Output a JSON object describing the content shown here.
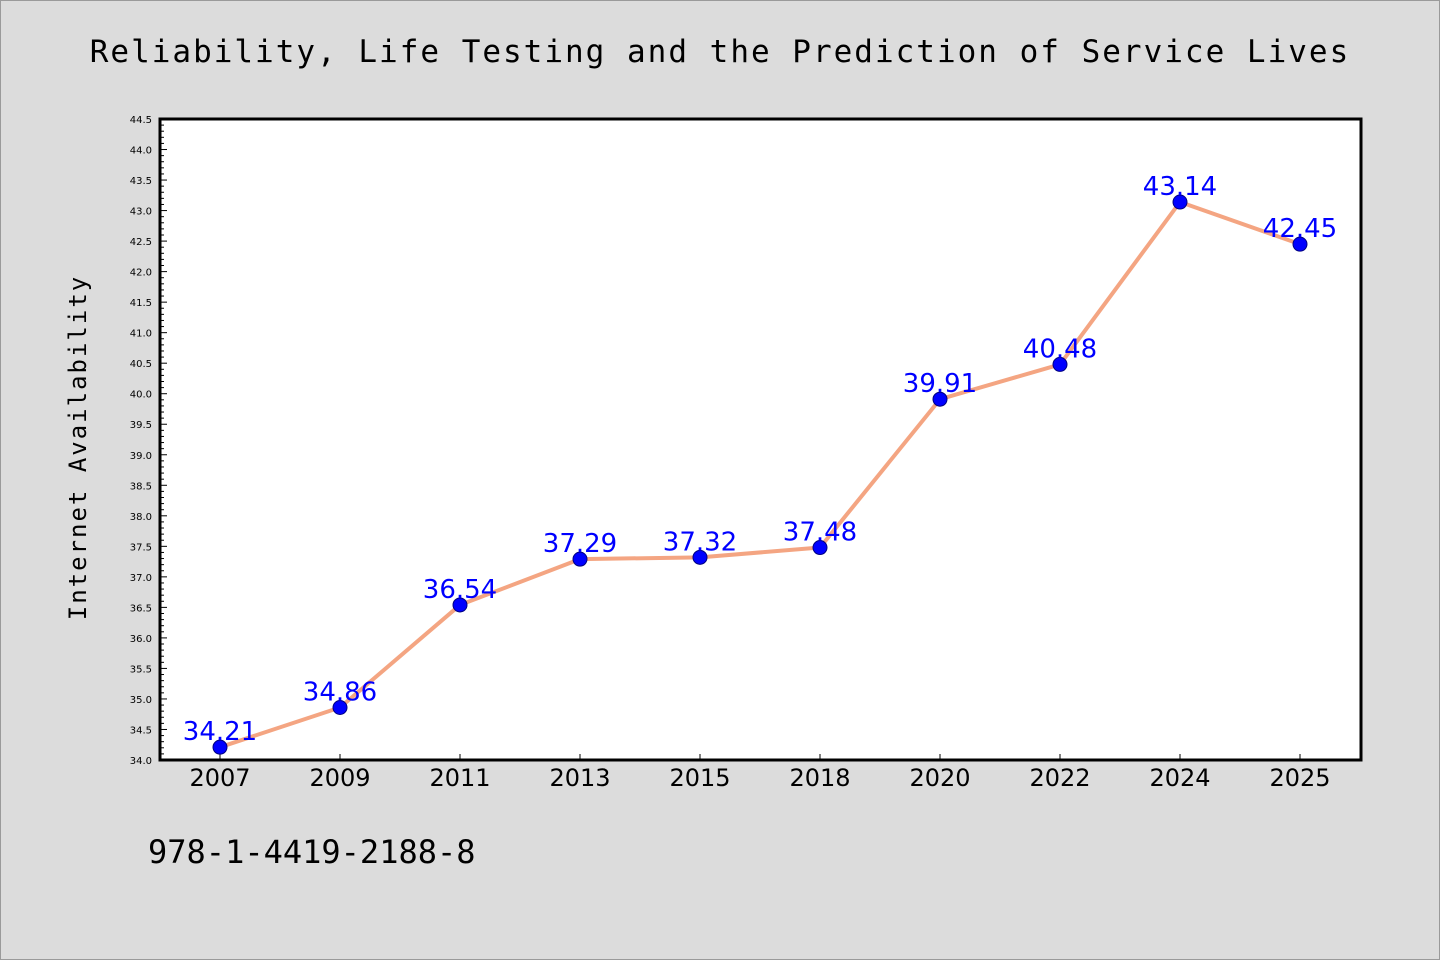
{
  "title": "Reliability, Life Testing and the Prediction of Service Lives",
  "footer": "978-1-4419-2188-8",
  "colors": {
    "background": "#dcdcdc",
    "plot_area": "#ffffff",
    "line": "#f4a582",
    "marker": "#0000ff",
    "data_label": "#0000ff"
  },
  "chart_data": {
    "type": "line",
    "title": "Reliability, Life Testing and the Prediction of Service Lives",
    "xlabel": "",
    "ylabel": "Internet Availability",
    "categories": [
      "2007",
      "2009",
      "2011",
      "2013",
      "2015",
      "2018",
      "2020",
      "2022",
      "2024",
      "2025"
    ],
    "series": [
      {
        "values": [
          34.21,
          34.86,
          36.54,
          37.29,
          37.32,
          37.48,
          39.91,
          40.48,
          43.14,
          42.45
        ],
        "data_labels": [
          "34.21",
          "34.86",
          "36.54",
          "37.29",
          "37.32",
          "37.48",
          "39.91",
          "40.48",
          "43.14",
          "42.45"
        ]
      }
    ],
    "ylim": [
      34.0,
      44.5
    ],
    "y_ticks": [
      "34.0",
      "34.5",
      "35.0",
      "35.5",
      "36.0",
      "36.5",
      "37.0",
      "37.5",
      "38.0",
      "38.5",
      "39.0",
      "39.5",
      "40.0",
      "40.5",
      "41.0",
      "41.5",
      "42.0",
      "42.5",
      "43.0",
      "43.5",
      "44.0",
      "44.5"
    ],
    "grid": false,
    "legend": "none"
  }
}
